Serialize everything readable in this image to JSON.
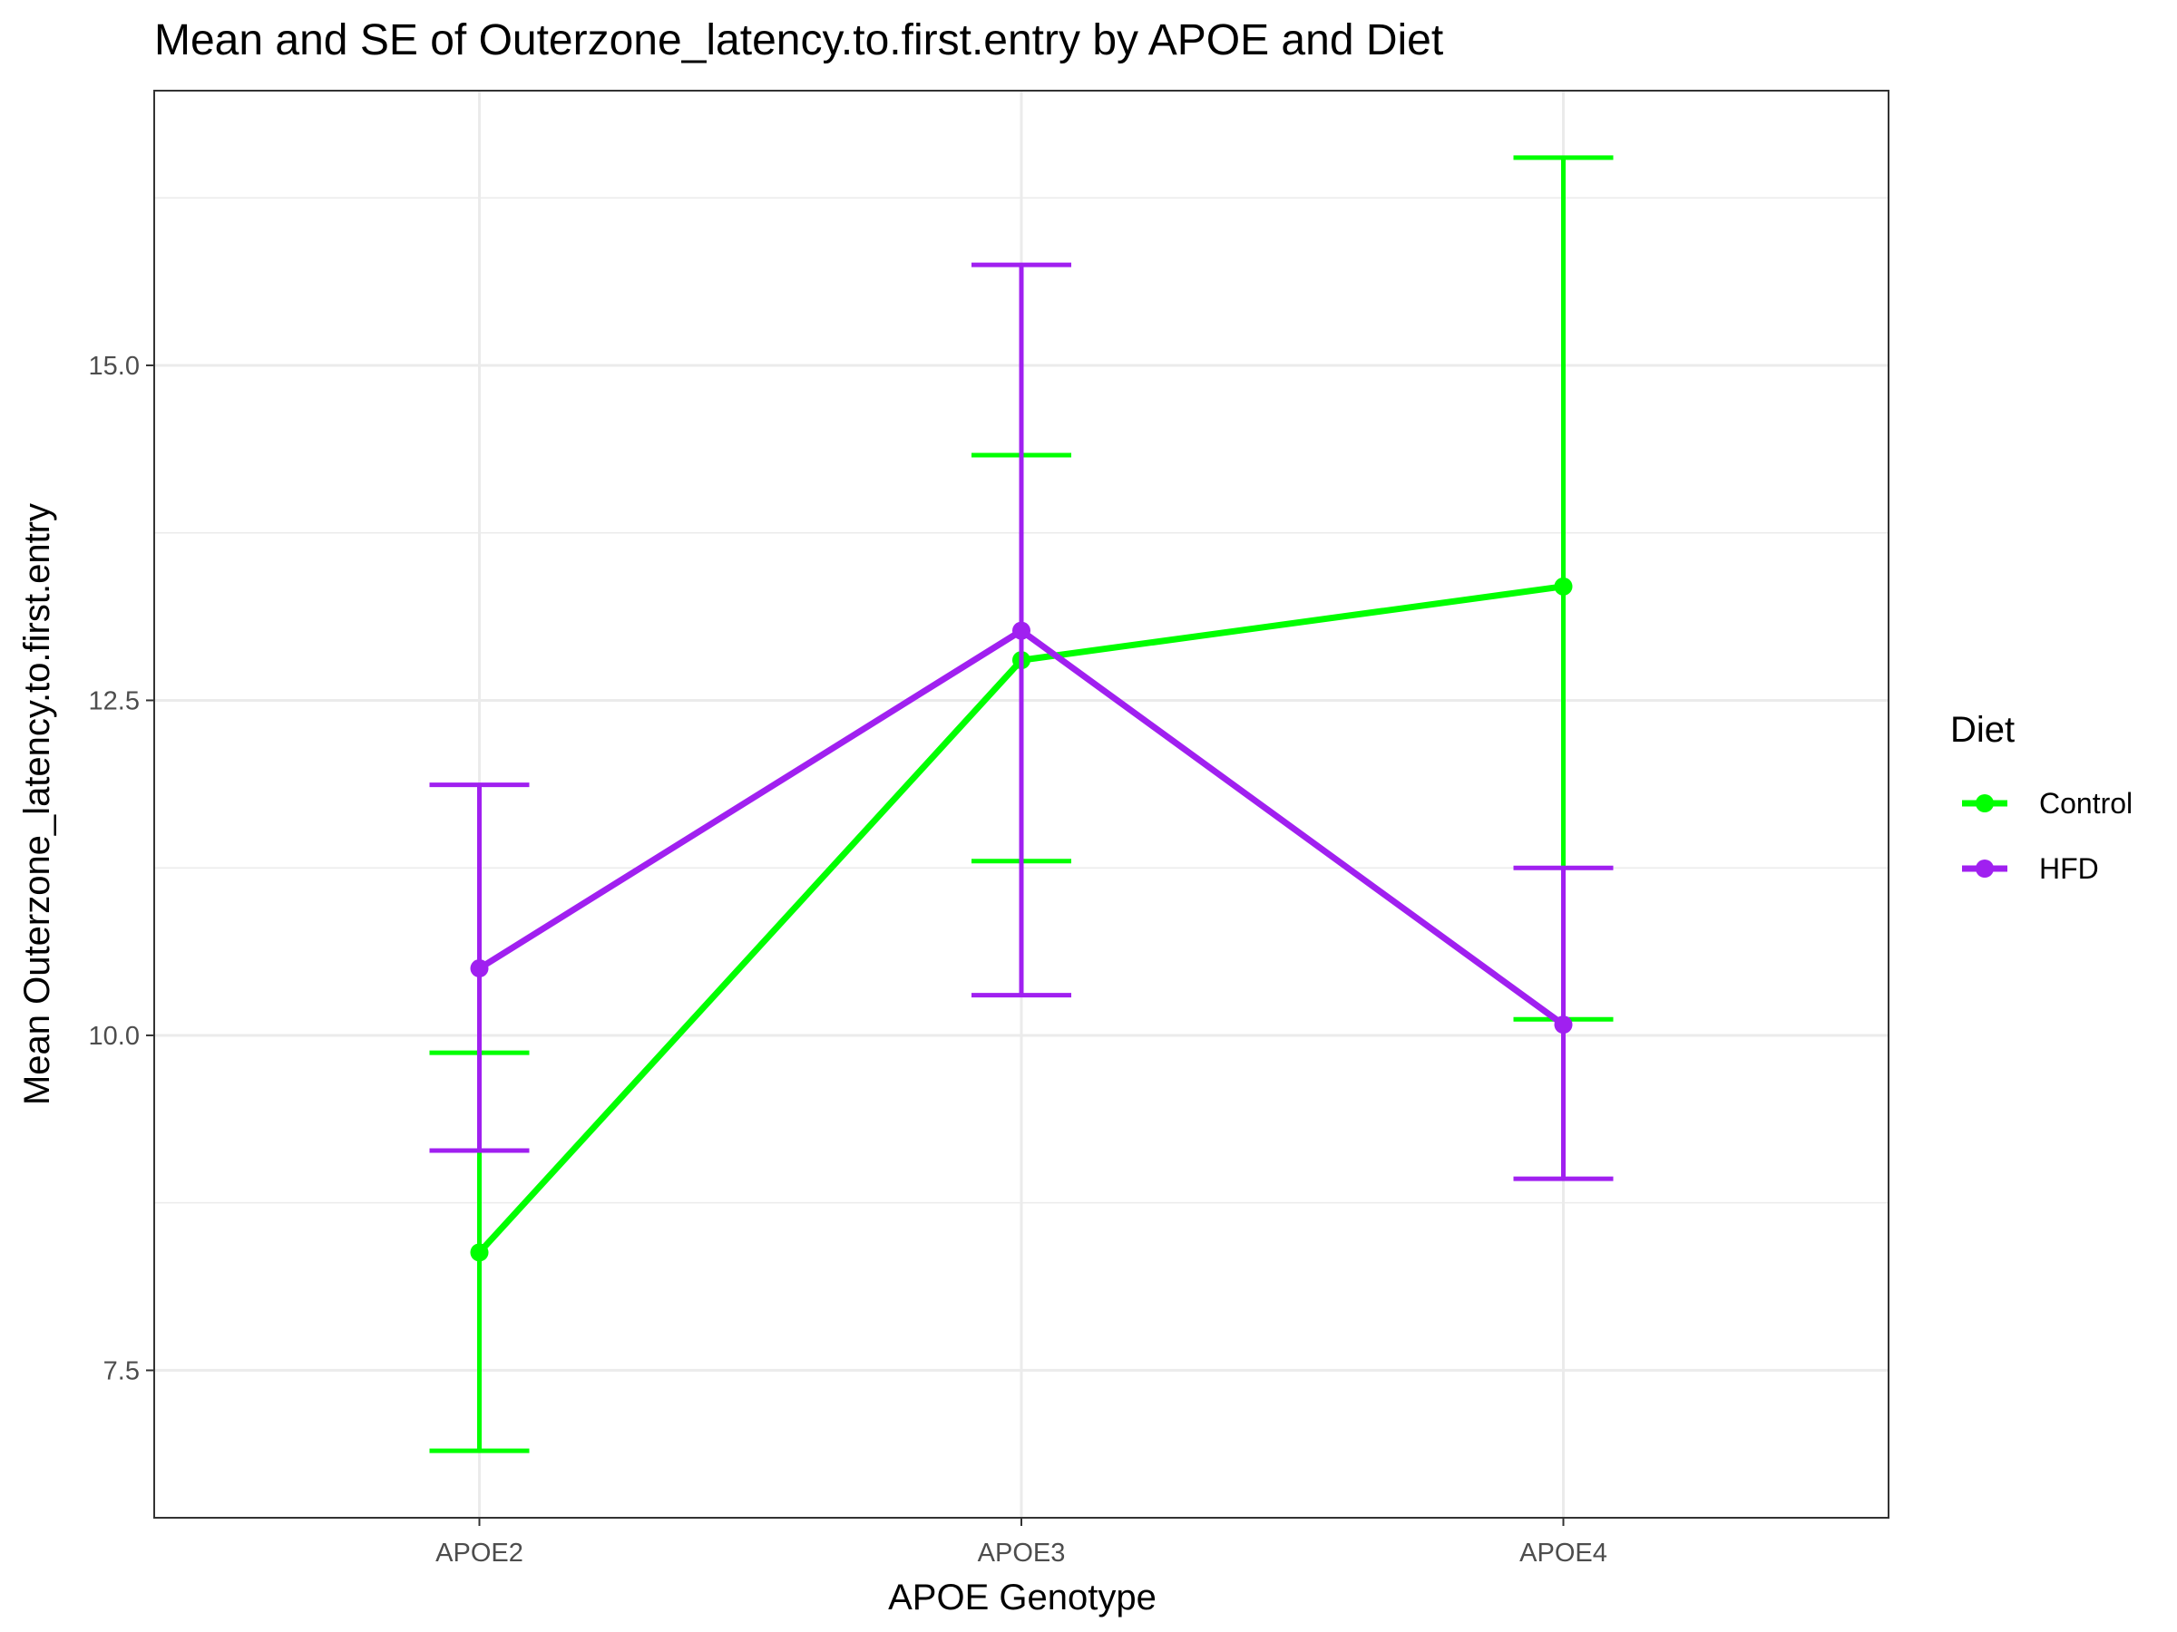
{
  "chart_data": {
    "type": "line",
    "title": "Mean and SE of Outerzone_latency.to.first.entry by APOE and Diet",
    "xlabel": "APOE Genotype",
    "ylabel": "Mean Outerzone_latency.to.first.entry",
    "categories": [
      "APOE2",
      "APOE3",
      "APOE4"
    ],
    "ylim": [
      6.4,
      17.05
    ],
    "yticks": [
      7.5,
      10.0,
      12.5,
      15.0
    ],
    "ytick_labels": [
      "7.5",
      "10.0",
      "12.5",
      "15.0"
    ],
    "grid": true,
    "legend": {
      "title": "Diet",
      "position": "right"
    },
    "series": [
      {
        "name": "Control",
        "color": "#00ff00",
        "mean": [
          8.38,
          12.8,
          13.35
        ],
        "se_low": [
          6.9,
          11.3,
          10.12
        ],
        "se_high": [
          9.87,
          14.33,
          16.55
        ]
      },
      {
        "name": "HFD",
        "color": "#a020f0",
        "mean": [
          10.5,
          13.02,
          10.08
        ],
        "se_low": [
          9.14,
          10.3,
          8.93
        ],
        "se_high": [
          11.87,
          15.75,
          11.25
        ]
      }
    ]
  }
}
